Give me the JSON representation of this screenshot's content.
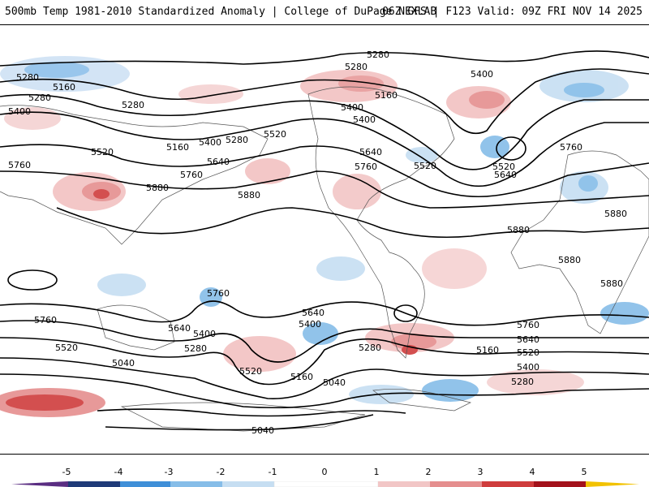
{
  "header": {
    "title_left": "500mb Temp 1981-2010 Standardized Anomaly | College of DuPage NEXLAB",
    "title_right": "06Z GFS | F123 Valid: 09Z FRI NOV 14 2025"
  },
  "map": {
    "contour_labels": [
      {
        "id": "l1",
        "text": "5280"
      },
      {
        "id": "l2",
        "text": "5280"
      },
      {
        "id": "l3",
        "text": "5400"
      },
      {
        "id": "l4",
        "text": "5160"
      },
      {
        "id": "l5",
        "text": "5280"
      },
      {
        "id": "l6",
        "text": "5280"
      },
      {
        "id": "l7",
        "text": "5400"
      },
      {
        "id": "l8",
        "text": "5520"
      },
      {
        "id": "l9",
        "text": "5160"
      },
      {
        "id": "l10",
        "text": "5400"
      },
      {
        "id": "l11",
        "text": "5280"
      },
      {
        "id": "l12",
        "text": "5520"
      },
      {
        "id": "l13",
        "text": "5760"
      },
      {
        "id": "l14",
        "text": "5640"
      },
      {
        "id": "l15",
        "text": "5760"
      },
      {
        "id": "l16",
        "text": "5880"
      },
      {
        "id": "l17",
        "text": "5880"
      },
      {
        "id": "l18",
        "text": "5160"
      },
      {
        "id": "l19",
        "text": "5280"
      },
      {
        "id": "l20",
        "text": "5400"
      },
      {
        "id": "l21",
        "text": "5640"
      },
      {
        "id": "l22",
        "text": "5760"
      },
      {
        "id": "l23",
        "text": "5520"
      },
      {
        "id": "l24",
        "text": "5400"
      },
      {
        "id": "l25",
        "text": "5520"
      },
      {
        "id": "l26",
        "text": "5640"
      },
      {
        "id": "l27",
        "text": "5760"
      },
      {
        "id": "l28",
        "text": "5880"
      },
      {
        "id": "l29",
        "text": "5880"
      },
      {
        "id": "l30",
        "text": "5880"
      },
      {
        "id": "l31",
        "text": "5880"
      },
      {
        "id": "l32",
        "text": "5760"
      },
      {
        "id": "l33",
        "text": "5760"
      },
      {
        "id": "l34",
        "text": "5520"
      },
      {
        "id": "l35",
        "text": "5640"
      },
      {
        "id": "l36",
        "text": "5400"
      },
      {
        "id": "l37",
        "text": "5280"
      },
      {
        "id": "l38",
        "text": "5040"
      },
      {
        "id": "l39",
        "text": "5520"
      },
      {
        "id": "l40",
        "text": "5160"
      },
      {
        "id": "l41",
        "text": "5040"
      },
      {
        "id": "l42",
        "text": "5640"
      },
      {
        "id": "l43",
        "text": "5400"
      },
      {
        "id": "l44",
        "text": "5280"
      },
      {
        "id": "l45",
        "text": "5160"
      },
      {
        "id": "l46",
        "text": "5760"
      },
      {
        "id": "l47",
        "text": "5640"
      },
      {
        "id": "l48",
        "text": "5520"
      },
      {
        "id": "l49",
        "text": "5400"
      },
      {
        "id": "l50",
        "text": "5280"
      },
      {
        "id": "l51",
        "text": "5040"
      }
    ]
  },
  "colorbar": {
    "ticks": [
      "-5",
      "-4",
      "-3",
      "-2",
      "-1",
      "0",
      "1",
      "2",
      "3",
      "4",
      "5"
    ],
    "colors": [
      "#5a2d82",
      "#1f3a78",
      "#3f8fd8",
      "#86bde8",
      "#c6def2",
      "#ffffff",
      "#f2c6c6",
      "#e58e8e",
      "#cf3c3c",
      "#a3121b",
      "#f2c200"
    ]
  }
}
